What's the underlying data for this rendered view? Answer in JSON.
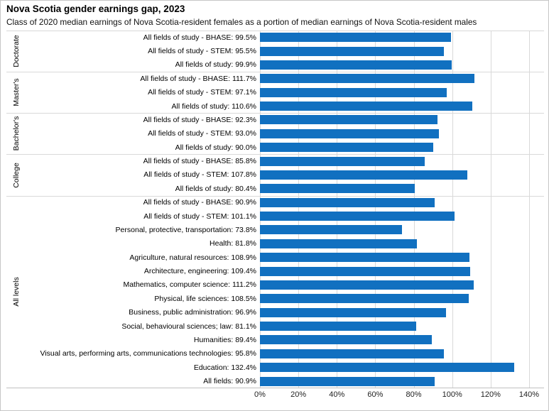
{
  "chart_data": {
    "type": "bar",
    "orientation": "horizontal",
    "title": "Nova Scotia gender earnings gap, 2023",
    "subtitle": "Class of 2020 median earnings of Nova Scotia-resident females as a portion of median earnings of Nova Scotia-resident males",
    "xlabel": "",
    "ylabel": "",
    "xlim": [
      0,
      140
    ],
    "x_ticks": [
      "0%",
      "20%",
      "40%",
      "60%",
      "80%",
      "100%",
      "120%",
      "140%"
    ],
    "grid": "vertical",
    "legend": "none",
    "bar_color": "#1170c0",
    "gridline_color": "#d9d9d9",
    "label_format": "{label}: {value}%",
    "groups": [
      {
        "name": "Doctorate",
        "items": [
          {
            "label": "All fields of study - BHASE",
            "value": "99.5"
          },
          {
            "label": "All fields of study - STEM",
            "value": "95.5"
          },
          {
            "label": "All fields of study",
            "value": "99.9"
          }
        ]
      },
      {
        "name": "Master's",
        "items": [
          {
            "label": "All fields of study - BHASE",
            "value": "111.7"
          },
          {
            "label": "All fields of study - STEM",
            "value": "97.1"
          },
          {
            "label": "All fields of study",
            "value": "110.6"
          }
        ]
      },
      {
        "name": "Bachelor's",
        "items": [
          {
            "label": "All fields of study - BHASE",
            "value": "92.3"
          },
          {
            "label": "All fields of study - STEM",
            "value": "93.0"
          },
          {
            "label": "All fields of study",
            "value": "90.0"
          }
        ]
      },
      {
        "name": "College",
        "items": [
          {
            "label": "All fields of study - BHASE",
            "value": "85.8"
          },
          {
            "label": "All fields of study - STEM",
            "value": "107.8"
          },
          {
            "label": "All fields of study",
            "value": "80.4"
          }
        ]
      },
      {
        "name": "All levels",
        "items": [
          {
            "label": "All fields of study - BHASE",
            "value": "90.9"
          },
          {
            "label": "All fields of study - STEM",
            "value": "101.1"
          },
          {
            "label": "Personal, protective, transportation",
            "value": "73.8"
          },
          {
            "label": "Health",
            "value": "81.8"
          },
          {
            "label": "Agriculture, natural resources",
            "value": "108.9"
          },
          {
            "label": "Architecture, engineering",
            "value": "109.4"
          },
          {
            "label": "Mathematics, computer science",
            "value": "111.2"
          },
          {
            "label": "Physical, life sciences",
            "value": "108.5"
          },
          {
            "label": "Business, public administration",
            "value": "96.9"
          },
          {
            "label": "Social, behavioural sciences; law",
            "value": "81.1"
          },
          {
            "label": "Humanities",
            "value": "89.4"
          },
          {
            "label": "Visual arts, performing arts, communications technologies",
            "value": "95.8"
          },
          {
            "label": "Education",
            "value": "132.4"
          },
          {
            "label": "All fields",
            "value": "90.9"
          }
        ]
      }
    ]
  }
}
